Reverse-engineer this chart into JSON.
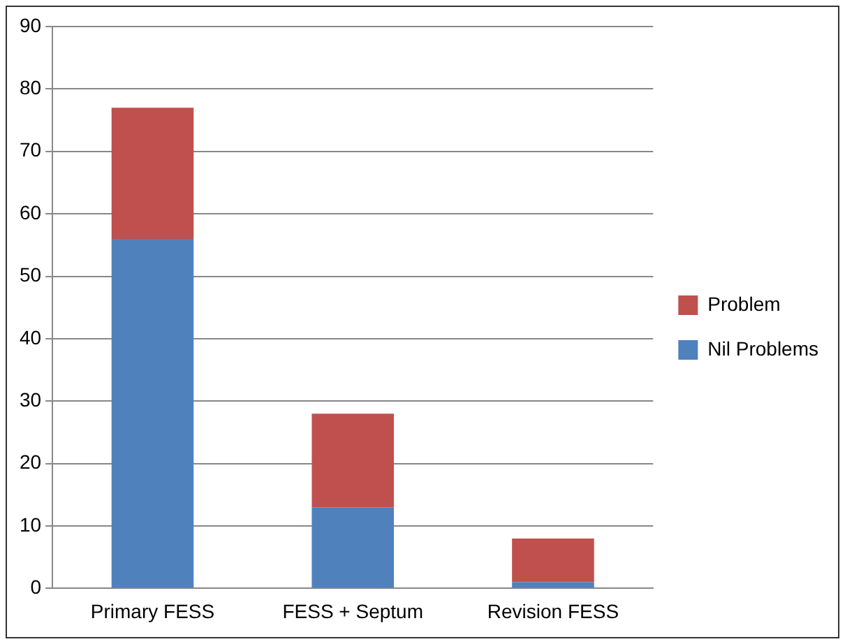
{
  "chart_data": {
    "type": "bar",
    "stacked": true,
    "categories": [
      "Primary FESS",
      "FESS + Septum",
      "Revision FESS"
    ],
    "series": [
      {
        "name": "Nil Problems",
        "color": "#4f81bd",
        "values": [
          56,
          13,
          1
        ]
      },
      {
        "name": "Problem",
        "color": "#c0504d",
        "values": [
          21,
          15,
          7
        ]
      }
    ],
    "ylim": [
      0,
      90
    ],
    "yticks": [
      0,
      10,
      20,
      30,
      40,
      50,
      60,
      70,
      80,
      90
    ],
    "grid": "y",
    "legend": "right"
  }
}
